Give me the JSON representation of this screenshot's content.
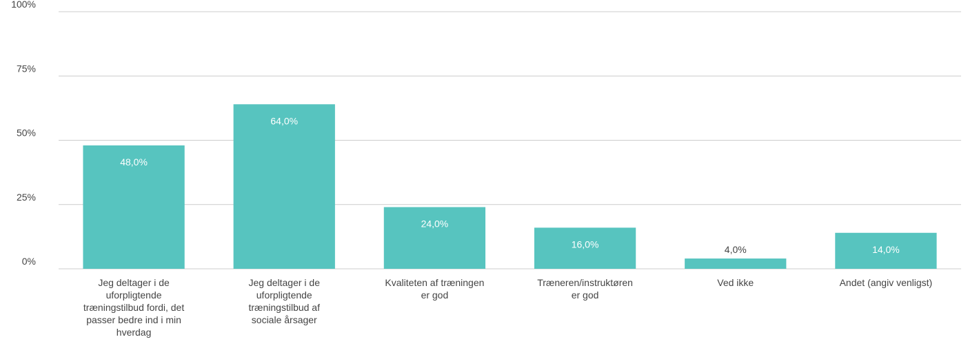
{
  "chart_data": {
    "type": "bar",
    "categories": [
      "Jeg deltager i de uforpligtende træningstilbud fordi, det passer bedre ind i min hverdag",
      "Jeg deltager i de uforpligtende træningstilbud af sociale årsager",
      "Kvaliteten af træningen er god",
      "Træneren/instruktøren er god",
      "Ved ikke",
      "Andet (angiv venligst)"
    ],
    "values": [
      48,
      64,
      24,
      16,
      4,
      14
    ],
    "value_labels": [
      "48,0%",
      "64,0%",
      "24,0%",
      "16,0%",
      "4,0%",
      "14,0%"
    ],
    "color": "#57c4bf",
    "ylim": [
      0,
      100
    ],
    "yticks": [
      {
        "value": 0,
        "label": "0%"
      },
      {
        "value": 25,
        "label": "25%"
      },
      {
        "value": 50,
        "label": "50%"
      },
      {
        "value": 75,
        "label": "75%"
      },
      {
        "value": 100,
        "label": "100%"
      }
    ],
    "grid": true
  }
}
